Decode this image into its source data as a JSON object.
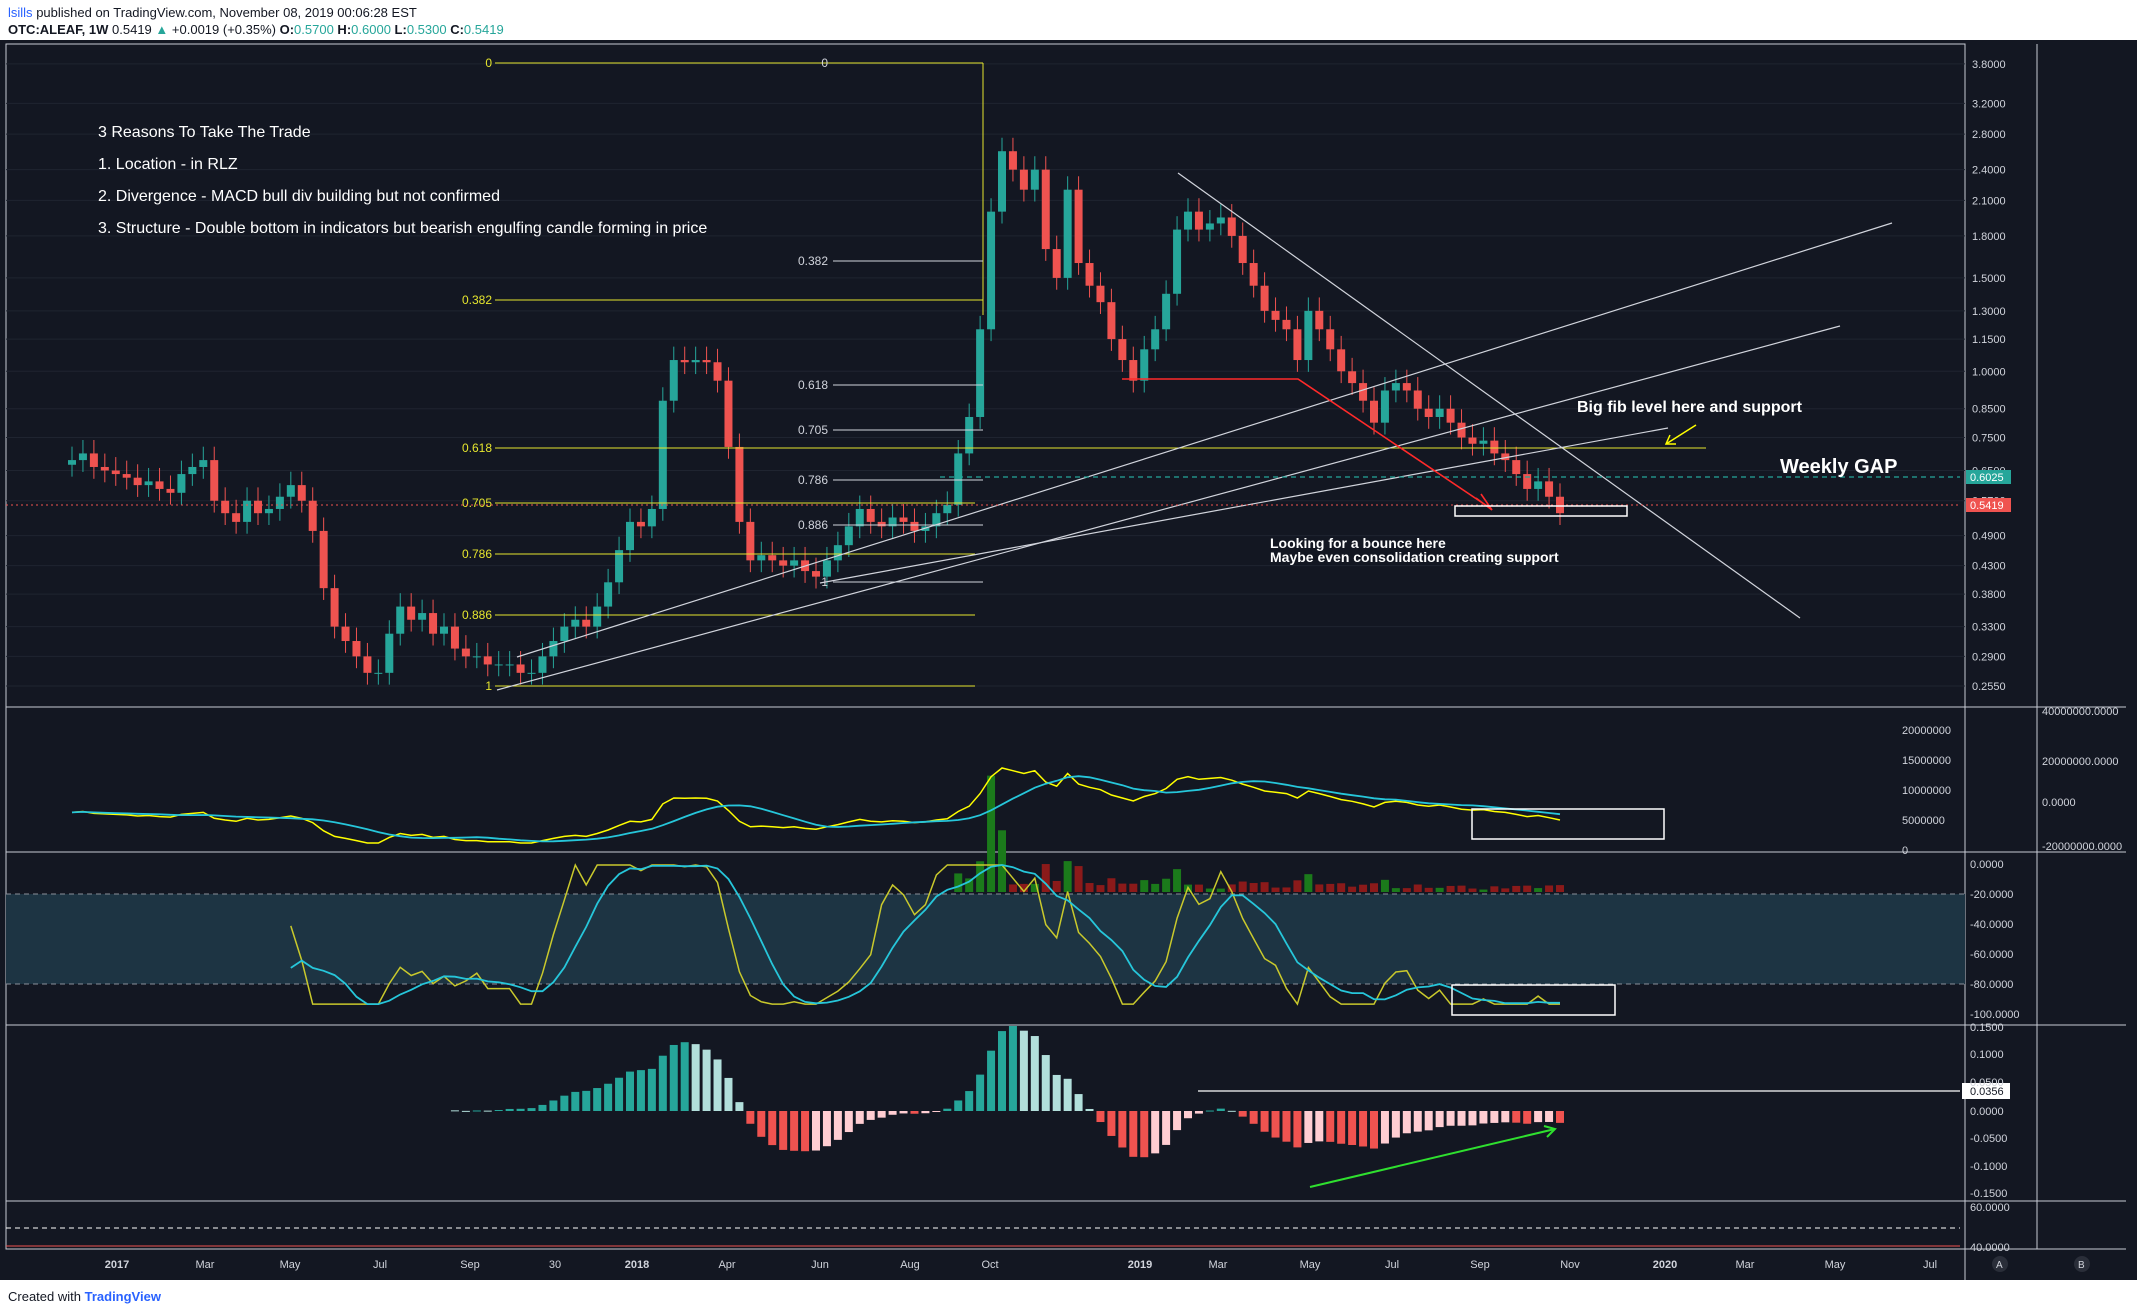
{
  "header": {
    "user": "lsills",
    "published": "published on TradingView.com, November 08, 2019 00:06:28 EST",
    "symbol": "OTC:ALEAF, 1W",
    "last": "0.5419",
    "change": "+0.0019 (+0.35%)",
    "open": "0.5700",
    "high": "0.6000",
    "low": "0.5300",
    "close": "0.5419"
  },
  "footer": {
    "created_with": "Created with",
    "brand": "TradingView"
  },
  "annotations": {
    "reasons_title": "3 Reasons To Take The Trade",
    "reason1": "1. Location - in RLZ",
    "reason2": "2. Divergence - MACD bull div building but not confirmed",
    "reason3": "3. Structure - Double bottom in indicators but bearish engulfing candle forming in price",
    "fib_support": "Big fib level here and support",
    "weekly_gap": "Weekly GAP",
    "bounce1": "Looking for a bounce here",
    "bounce2": "Maybe even consolidation creating support"
  },
  "colors": {
    "background": "#131722",
    "up": "#26a69a",
    "down": "#ef5350",
    "fib_yellow": "#e6e62e",
    "signal": "#26c6da",
    "vol_up": "#1b7a1b",
    "vol_down": "#8b1a1a"
  },
  "chart_data": [
    {
      "type": "candlestick",
      "name": "price",
      "scale": "log",
      "ylim": [
        0.22,
        4.0
      ],
      "x_ticks": [
        "2017",
        "Mar",
        "May",
        "Jul",
        "Sep",
        "30",
        "2018",
        "Apr",
        "Jun",
        "Aug",
        "Oct",
        "2019",
        "Mar",
        "May",
        "Jul",
        "Sep",
        "Nov",
        "2020",
        "Mar",
        "May",
        "Jul"
      ],
      "y_ticks": [
        "3.8000",
        "3.2000",
        "2.8000",
        "2.4000",
        "2.1000",
        "1.8000",
        "1.5000",
        "1.3000",
        "1.1500",
        "1.0000",
        "0.8500",
        "0.7500",
        "0.6500",
        "0.5700",
        "0.4900",
        "0.4300",
        "0.3800",
        "0.3300",
        "0.2900",
        "0.2550"
      ],
      "price_tags": [
        {
          "label": "0.6025",
          "color": "#26a69a"
        },
        {
          "label": "0.5419",
          "color": "#ef5350"
        }
      ],
      "close": [
        0.68,
        0.7,
        0.66,
        0.65,
        0.64,
        0.63,
        0.61,
        0.62,
        0.6,
        0.59,
        0.64,
        0.66,
        0.68,
        0.57,
        0.54,
        0.52,
        0.57,
        0.54,
        0.55,
        0.58,
        0.61,
        0.57,
        0.5,
        0.39,
        0.33,
        0.31,
        0.29,
        0.27,
        0.27,
        0.32,
        0.36,
        0.34,
        0.35,
        0.32,
        0.33,
        0.3,
        0.29,
        0.29,
        0.28,
        0.28,
        0.28,
        0.27,
        0.27,
        0.29,
        0.31,
        0.33,
        0.34,
        0.33,
        0.36,
        0.4,
        0.46,
        0.52,
        0.51,
        0.55,
        0.88,
        1.05,
        1.04,
        1.05,
        1.04,
        0.96,
        0.72,
        0.52,
        0.44,
        0.45,
        0.44,
        0.43,
        0.44,
        0.42,
        0.41,
        0.44,
        0.47,
        0.51,
        0.55,
        0.52,
        0.51,
        0.53,
        0.52,
        0.5,
        0.51,
        0.54,
        0.56,
        0.7,
        0.82,
        1.2,
        2.0,
        2.6,
        2.4,
        2.2,
        2.4,
        1.7,
        1.5,
        2.2,
        1.6,
        1.45,
        1.35,
        1.15,
        1.05,
        0.96,
        1.1,
        1.2,
        1.4,
        1.85,
        2.0,
        1.85,
        1.9,
        1.95,
        1.8,
        1.6,
        1.45,
        1.3,
        1.25,
        1.2,
        1.05,
        1.3,
        1.2,
        1.1,
        1.0,
        0.95,
        0.88,
        0.8,
        0.92,
        0.95,
        0.92,
        0.85,
        0.82,
        0.85,
        0.8,
        0.75,
        0.73,
        0.74,
        0.7,
        0.68,
        0.64,
        0.6,
        0.62,
        0.58,
        0.54
      ]
    },
    {
      "type": "bar",
      "name": "volume-obv",
      "y_ticks_left": [
        "20000000",
        "15000000",
        "10000000",
        "5000000",
        "0"
      ],
      "y_ticks_right": [
        "40000000.0000",
        "20000000.0000",
        "0.0000",
        "-20000000.0000"
      ]
    },
    {
      "type": "line",
      "name": "stochastic",
      "ylim": [
        -110,
        0
      ],
      "y_ticks": [
        "0.0000",
        "-20.0000",
        "-40.0000",
        "-60.0000",
        "-80.0000",
        "-100.0000"
      ]
    },
    {
      "type": "bar",
      "name": "macd-histogram",
      "ylim": [
        -0.15,
        0.16
      ],
      "y_ticks": [
        "0.1500",
        "0.1000",
        "0.0500",
        "0.0000",
        "-0.0500",
        "-0.1000",
        "-0.1500"
      ],
      "price_tag": "0.0356"
    },
    {
      "type": "line",
      "name": "rsi-band",
      "y_ticks": [
        "60.0000",
        "40.0000"
      ]
    }
  ],
  "axis_badges": [
    "A",
    "B"
  ]
}
